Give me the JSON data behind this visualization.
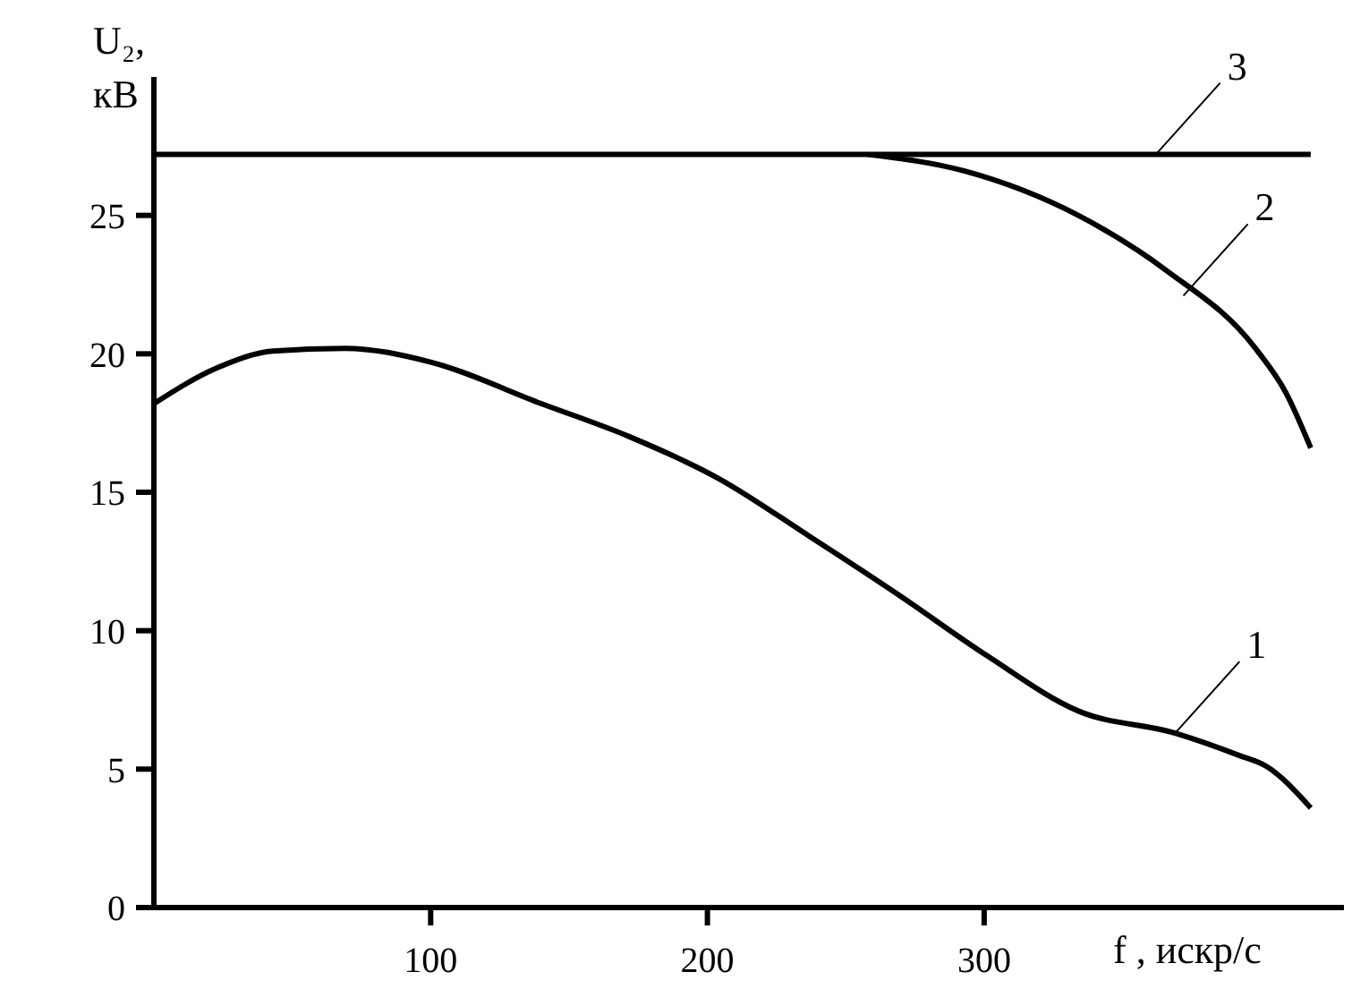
{
  "chart_data": {
    "type": "line",
    "xlabel": "f , искр/с",
    "ylabel": "U₂, кВ",
    "xlim": [
      0,
      430
    ],
    "xticks": [
      100,
      200,
      300
    ],
    "ylim": [
      0,
      30
    ],
    "yticks": [
      0,
      5,
      10,
      15,
      20,
      25
    ],
    "grid": false,
    "marker": "none",
    "line_style": "solid",
    "series": [
      {
        "color": "#000000",
        "x": [
          0,
          23,
          43,
          69,
          100,
          140,
          172,
          204,
          237,
          269,
          301,
          334,
          369,
          392,
          402,
          418
        ],
        "values": [
          18.2,
          19.5,
          20.1,
          20.2,
          19.7,
          18.2,
          17.0,
          15.5,
          13.4,
          11.3,
          9.1,
          7.1,
          6.3,
          5.5,
          5.1,
          3.6
        ]
      },
      {
        "color": "#000000",
        "x": [
          258,
          293,
          334,
          366,
          398,
          409,
          418
        ],
        "values": [
          27.2,
          26.6,
          25.0,
          23.0,
          20.2,
          18.6,
          16.6
        ]
      },
      {
        "color": "#000000",
        "x": [
          0,
          418
        ],
        "values": [
          27.2,
          27.2
        ]
      }
    ],
    "annotations": [
      {
        "text": "1",
        "x": 369,
        "y": 6.3
      },
      {
        "text": "2",
        "x": 372,
        "y": 22.1
      },
      {
        "text": "3",
        "x": 362,
        "y": 27.2
      }
    ]
  }
}
